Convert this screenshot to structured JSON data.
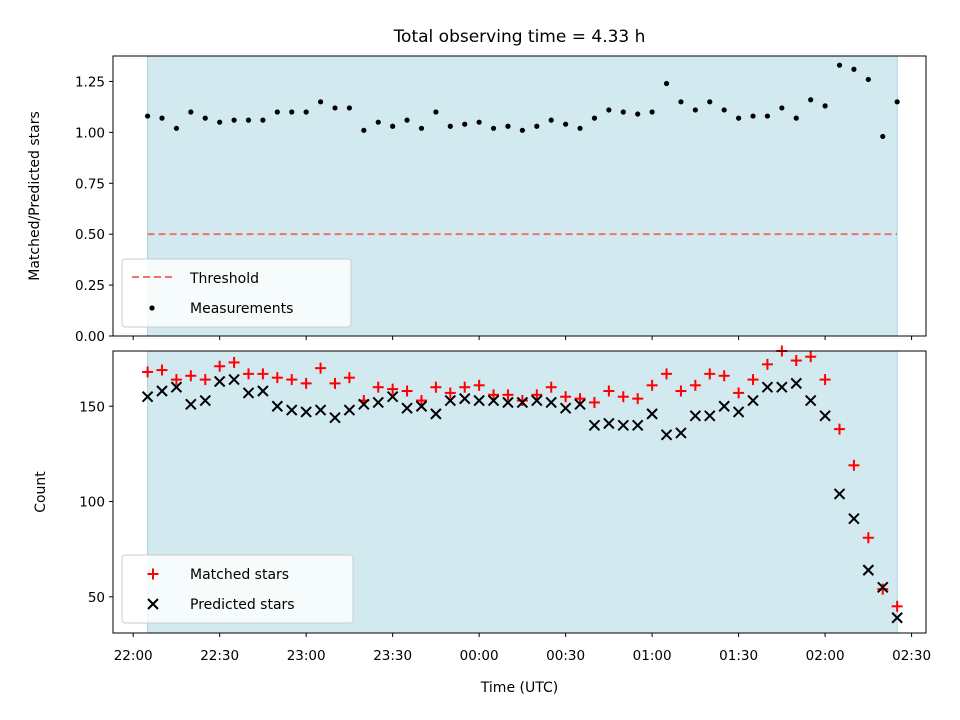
{
  "chart_data": [
    {
      "type": "scatter",
      "title": "Total observing time = 4.33 h",
      "xlabel": "",
      "ylabel": "Matched/Predicted stars",
      "ylim": [
        0.0,
        1.375
      ],
      "xlim": [
        "21:53",
        "02:35"
      ],
      "yticks": [
        0.0,
        0.25,
        0.5,
        0.75,
        1.0,
        1.25
      ],
      "ytick_labels": [
        "0.00",
        "0.25",
        "0.50",
        "0.75",
        "1.00",
        "1.25"
      ],
      "shaded_interval": [
        "22:05",
        "02:25"
      ],
      "shade_color": "#d3e9f0",
      "threshold": {
        "name": "Threshold",
        "value": 0.5,
        "color": "#f07070"
      },
      "legend": {
        "placement": "lower left",
        "entries": [
          "Threshold",
          "Measurements"
        ]
      },
      "series": [
        {
          "name": "Measurements",
          "color": "#000000",
          "x": [
            "22:05",
            "22:10",
            "22:15",
            "22:20",
            "22:25",
            "22:30",
            "22:35",
            "22:40",
            "22:45",
            "22:50",
            "22:55",
            "23:00",
            "23:05",
            "23:10",
            "23:15",
            "23:20",
            "23:25",
            "23:30",
            "23:35",
            "23:40",
            "23:45",
            "23:50",
            "23:55",
            "00:00",
            "00:05",
            "00:10",
            "00:15",
            "00:20",
            "00:25",
            "00:30",
            "00:35",
            "00:40",
            "00:45",
            "00:50",
            "00:55",
            "01:00",
            "01:05",
            "01:10",
            "01:15",
            "01:20",
            "01:25",
            "01:30",
            "01:35",
            "01:40",
            "01:45",
            "01:50",
            "01:55",
            "02:00",
            "02:05",
            "02:10",
            "02:15",
            "02:20",
            "02:25"
          ],
          "values": [
            1.08,
            1.07,
            1.02,
            1.1,
            1.07,
            1.05,
            1.06,
            1.06,
            1.06,
            1.1,
            1.1,
            1.1,
            1.15,
            1.12,
            1.12,
            1.01,
            1.05,
            1.03,
            1.06,
            1.02,
            1.1,
            1.03,
            1.04,
            1.05,
            1.02,
            1.03,
            1.01,
            1.03,
            1.06,
            1.04,
            1.02,
            1.07,
            1.11,
            1.1,
            1.09,
            1.1,
            1.24,
            1.15,
            1.11,
            1.15,
            1.11,
            1.07,
            1.08,
            1.08,
            1.12,
            1.07,
            1.16,
            1.13,
            1.33,
            1.31,
            1.26,
            0.98,
            1.15
          ]
        }
      ]
    },
    {
      "type": "scatter",
      "title": "",
      "xlabel": "Time (UTC)",
      "ylabel": "Count",
      "ylim": [
        31,
        179
      ],
      "xlim": [
        "21:53",
        "02:35"
      ],
      "yticks": [
        50,
        100,
        150
      ],
      "ytick_labels": [
        "50",
        "100",
        "150"
      ],
      "xticks": [
        "22:00",
        "22:30",
        "23:00",
        "23:30",
        "00:00",
        "00:30",
        "01:00",
        "01:30",
        "02:00",
        "02:30"
      ],
      "xtick_labels": [
        "22:00",
        "22:30",
        "23:00",
        "23:30",
        "00:00",
        "00:30",
        "01:00",
        "01:30",
        "02:00",
        "02:30"
      ],
      "shaded_interval": [
        "22:05",
        "02:25"
      ],
      "shade_color": "#d3e9f0",
      "legend": {
        "placement": "lower left",
        "entries": [
          "Matched stars",
          "Predicted stars"
        ]
      },
      "series": [
        {
          "name": "Matched stars",
          "marker": "plus",
          "color": "#ff0000",
          "x": [
            "22:05",
            "22:10",
            "22:15",
            "22:20",
            "22:25",
            "22:30",
            "22:35",
            "22:40",
            "22:45",
            "22:50",
            "22:55",
            "23:00",
            "23:05",
            "23:10",
            "23:15",
            "23:20",
            "23:25",
            "23:30",
            "23:35",
            "23:40",
            "23:45",
            "23:50",
            "23:55",
            "00:00",
            "00:05",
            "00:10",
            "00:15",
            "00:20",
            "00:25",
            "00:30",
            "00:35",
            "00:40",
            "00:45",
            "00:50",
            "00:55",
            "01:00",
            "01:05",
            "01:10",
            "01:15",
            "01:20",
            "01:25",
            "01:30",
            "01:35",
            "01:40",
            "01:45",
            "01:50",
            "01:55",
            "02:00",
            "02:05",
            "02:10",
            "02:15",
            "02:20",
            "02:25"
          ],
          "values": [
            168,
            169,
            164,
            166,
            164,
            171,
            173,
            167,
            167,
            165,
            164,
            162,
            170,
            162,
            165,
            153,
            160,
            159,
            158,
            153,
            160,
            157,
            160,
            161,
            156,
            156,
            153,
            156,
            160,
            155,
            154,
            152,
            158,
            155,
            154,
            161,
            167,
            158,
            161,
            167,
            166,
            157,
            164,
            172,
            179,
            174,
            176,
            164,
            138,
            119,
            81,
            54,
            45
          ]
        },
        {
          "name": "Predicted stars",
          "marker": "x",
          "color": "#000000",
          "x": [
            "22:05",
            "22:10",
            "22:15",
            "22:20",
            "22:25",
            "22:30",
            "22:35",
            "22:40",
            "22:45",
            "22:50",
            "22:55",
            "23:00",
            "23:05",
            "23:10",
            "23:15",
            "23:20",
            "23:25",
            "23:30",
            "23:35",
            "23:40",
            "23:45",
            "23:50",
            "23:55",
            "00:00",
            "00:05",
            "00:10",
            "00:15",
            "00:20",
            "00:25",
            "00:30",
            "00:35",
            "00:40",
            "00:45",
            "00:50",
            "00:55",
            "01:00",
            "01:05",
            "01:10",
            "01:15",
            "01:20",
            "01:25",
            "01:30",
            "01:35",
            "01:40",
            "01:45",
            "01:50",
            "01:55",
            "02:00",
            "02:05",
            "02:10",
            "02:15",
            "02:20",
            "02:25"
          ],
          "values": [
            155,
            158,
            160,
            151,
            153,
            163,
            164,
            157,
            158,
            150,
            148,
            147,
            148,
            144,
            148,
            151,
            152,
            155,
            149,
            150,
            146,
            153,
            154,
            153,
            153,
            152,
            152,
            153,
            152,
            149,
            151,
            140,
            141,
            140,
            140,
            146,
            135,
            136,
            145,
            145,
            150,
            147,
            153,
            160,
            160,
            162,
            153,
            145,
            104,
            91,
            64,
            55,
            39
          ]
        }
      ]
    }
  ]
}
